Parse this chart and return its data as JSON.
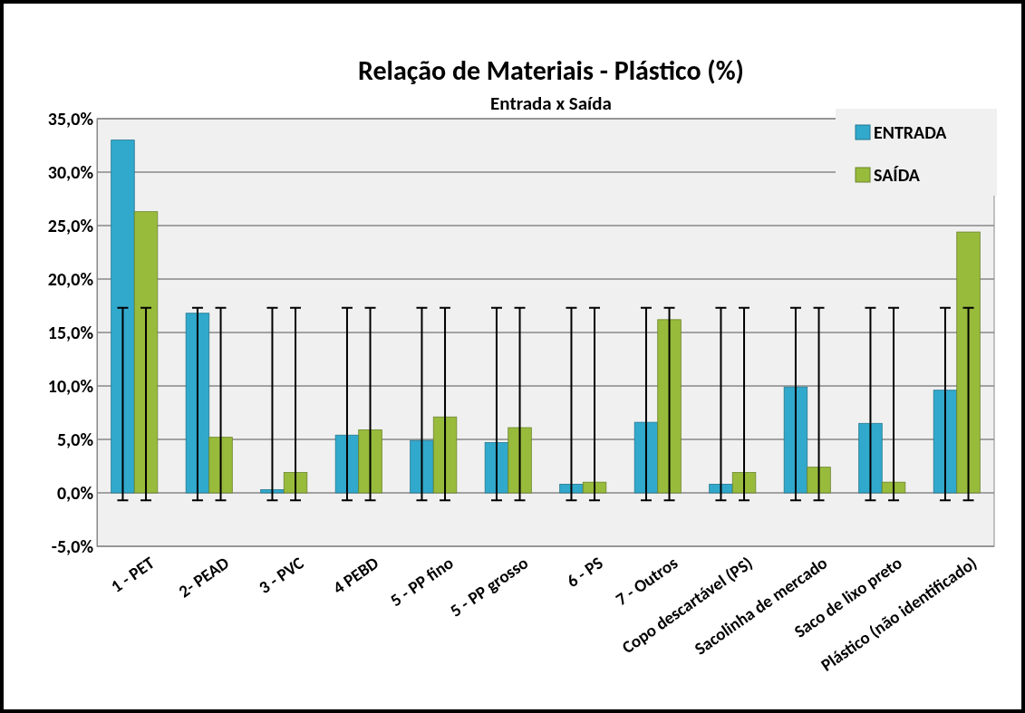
{
  "chart_data": {
    "type": "bar",
    "title": "Relação de Materiais - Plástico (%)",
    "subtitle": "Entrada x Saída",
    "categories": [
      "1 - PET",
      "2- PEAD",
      "3 - PVC",
      "4 PEBD",
      "5 - PP fino",
      "5 - PP grosso",
      "6 - PS",
      "7 - Outros",
      "Copo descartável (PS)",
      "Sacolinha de mercado",
      "Saco de lixo preto",
      "Plástico (não identificado)"
    ],
    "series": [
      {
        "name": "ENTRADA",
        "color": "#31a9cc",
        "values": [
          33.0,
          16.8,
          0.3,
          5.4,
          4.9,
          4.7,
          0.8,
          6.6,
          0.8,
          9.9,
          6.5,
          9.6
        ],
        "errors": [
          [
            -0.7,
            17.3
          ],
          [
            -0.7,
            17.3
          ],
          [
            -0.7,
            17.3
          ],
          [
            -0.7,
            17.3
          ],
          [
            -0.7,
            17.3
          ],
          [
            -0.7,
            17.3
          ],
          [
            -0.7,
            17.3
          ],
          [
            -0.7,
            17.3
          ],
          [
            -0.7,
            17.3
          ],
          [
            -0.7,
            17.3
          ],
          [
            -0.7,
            17.3
          ],
          [
            -0.7,
            17.3
          ]
        ]
      },
      {
        "name": "SAÍDA",
        "color": "#98bb3c",
        "values": [
          26.3,
          5.2,
          1.9,
          5.9,
          7.1,
          6.1,
          1.0,
          16.2,
          1.9,
          2.4,
          1.0,
          24.4
        ],
        "errors": [
          [
            -0.7,
            17.3
          ],
          [
            -0.7,
            17.3
          ],
          [
            -0.7,
            17.3
          ],
          [
            -0.7,
            17.3
          ],
          [
            -0.7,
            17.3
          ],
          [
            -0.7,
            17.3
          ],
          [
            -0.7,
            17.3
          ],
          [
            -0.7,
            17.3
          ],
          [
            -0.7,
            17.3
          ],
          [
            -0.7,
            17.3
          ],
          [
            -0.7,
            17.3
          ],
          [
            -0.7,
            17.3
          ]
        ]
      }
    ],
    "ylim": [
      -5,
      35
    ],
    "yticks": [
      {
        "value": -5,
        "label": "-5,0%"
      },
      {
        "value": 0,
        "label": "0,0%"
      },
      {
        "value": 5,
        "label": "5,0%"
      },
      {
        "value": 10,
        "label": "10,0%"
      },
      {
        "value": 15,
        "label": "15,0%"
      },
      {
        "value": 20,
        "label": "20,0%"
      },
      {
        "value": 25,
        "label": "25,0%"
      },
      {
        "value": 30,
        "label": "30,0%"
      },
      {
        "value": 35,
        "label": "35,0%"
      }
    ],
    "grid": "y",
    "legend": "top right"
  }
}
